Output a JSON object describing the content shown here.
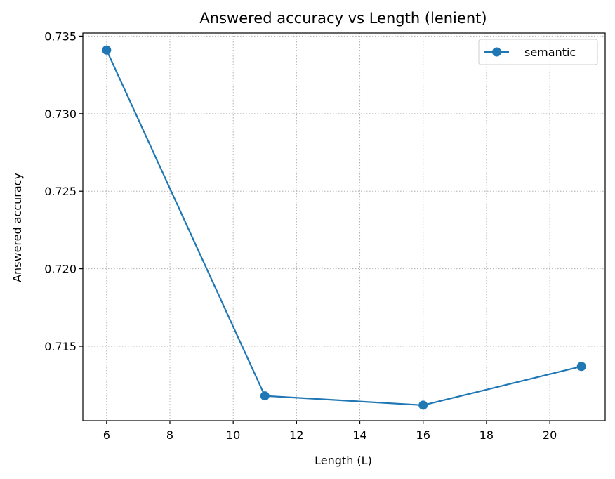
{
  "chart_data": {
    "type": "line",
    "title": "Answered accuracy vs Length (lenient)",
    "xlabel": "Length (L)",
    "ylabel": "Answered accuracy",
    "x": [
      6,
      11,
      16,
      21
    ],
    "series": [
      {
        "name": "semantic",
        "values": [
          0.7341,
          0.7118,
          0.7112,
          0.7137
        ],
        "color": "#1f77b4",
        "marker": "circle"
      }
    ],
    "xlim": [
      5.25,
      21.75
    ],
    "ylim": [
      0.7102,
      0.7352
    ],
    "xticks": [
      6,
      8,
      10,
      12,
      14,
      16,
      18,
      20
    ],
    "xtick_labels": [
      "6",
      "8",
      "10",
      "12",
      "14",
      "16",
      "18",
      "20"
    ],
    "yticks": [
      0.715,
      0.72,
      0.725,
      0.73,
      0.735
    ],
    "ytick_labels": [
      "0.715",
      "0.720",
      "0.725",
      "0.730",
      "0.735"
    ],
    "grid": true,
    "grid_style": "dotted",
    "legend_position": "top-right"
  }
}
